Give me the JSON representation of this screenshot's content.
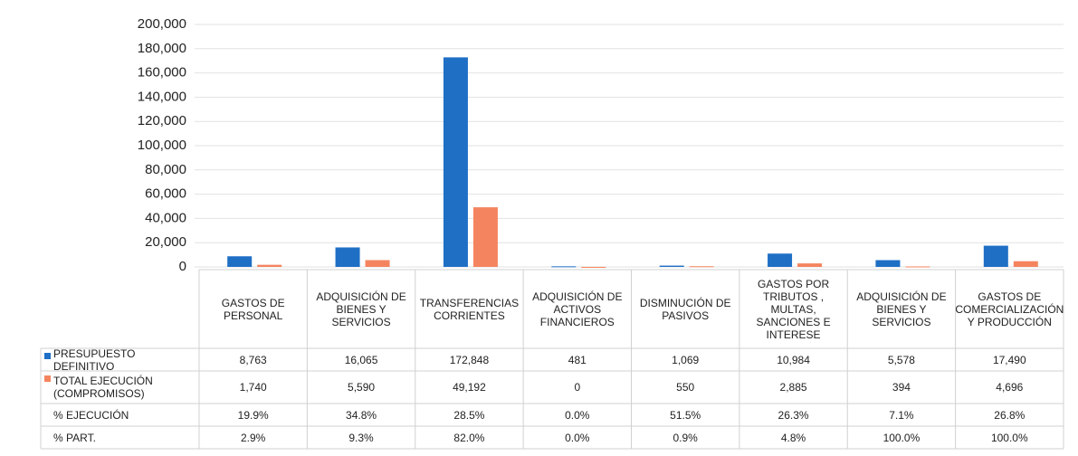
{
  "chart_data": {
    "type": "bar",
    "categories": [
      "GASTOS DE PERSONAL",
      "ADQUISICIÓN DE BIENES Y SERVICIOS",
      "TRANSFERENCIAS CORRIENTES",
      "ADQUISICIÓN DE ACTIVOS FINANCIEROS",
      "DISMINUCIÓN DE PASIVOS",
      "GASTOS POR TRIBUTOS , MULTAS, SANCIONES E INTERESE",
      "ADQUISICIÓN DE BIENES Y SERVICIOS",
      "GASTOS DE COMERCIALIZACIÓN Y PRODUCCIÓN"
    ],
    "series": [
      {
        "name": "PRESUPUESTO DEFINITIVO",
        "color": "#1f6fc5",
        "values": [
          8763,
          16065,
          172848,
          481,
          1069,
          10984,
          5578,
          17490
        ],
        "value_labels": [
          "8,763",
          "16,065",
          "172,848",
          "481",
          "1,069",
          "10,984",
          "5,578",
          "17,490"
        ]
      },
      {
        "name": "TOTAL EJECUCIÓN (COMPROMISOS)",
        "color": "#f4845f",
        "values": [
          1740,
          5590,
          49192,
          0,
          550,
          2885,
          394,
          4696
        ],
        "value_labels": [
          "1,740",
          "5,590",
          "49,192",
          "0",
          "550",
          "2,885",
          "394",
          "4,696"
        ]
      }
    ],
    "rows": [
      {
        "name": "% EJECUCIÓN",
        "cells": [
          "19.9%",
          "34.8%",
          "28.5%",
          "0.0%",
          "51.5%",
          "26.3%",
          "7.1%",
          "26.8%"
        ]
      },
      {
        "name": "% PART.",
        "cells": [
          "2.9%",
          "9.3%",
          "82.0%",
          "0.0%",
          "0.9%",
          "4.8%",
          "100.0%",
          "100.0%"
        ]
      }
    ],
    "ylim": [
      0,
      200000
    ],
    "yticks": [
      0,
      {
        "value": 20000,
        "label": "20,000"
      },
      {
        "value": 40000,
        "label": "40,000"
      },
      {
        "value": 60000,
        "label": "60,000"
      },
      {
        "value": 80000,
        "label": "80,000"
      },
      {
        "value": 100000,
        "label": "100,000"
      },
      {
        "value": 120000,
        "label": "120,000"
      },
      {
        "value": 140000,
        "label": "140,000"
      },
      {
        "value": 160000,
        "label": "160,000"
      },
      {
        "value": 180000,
        "label": "180,000"
      },
      {
        "value": 200000,
        "label": "200,000"
      }
    ],
    "grid": true
  }
}
